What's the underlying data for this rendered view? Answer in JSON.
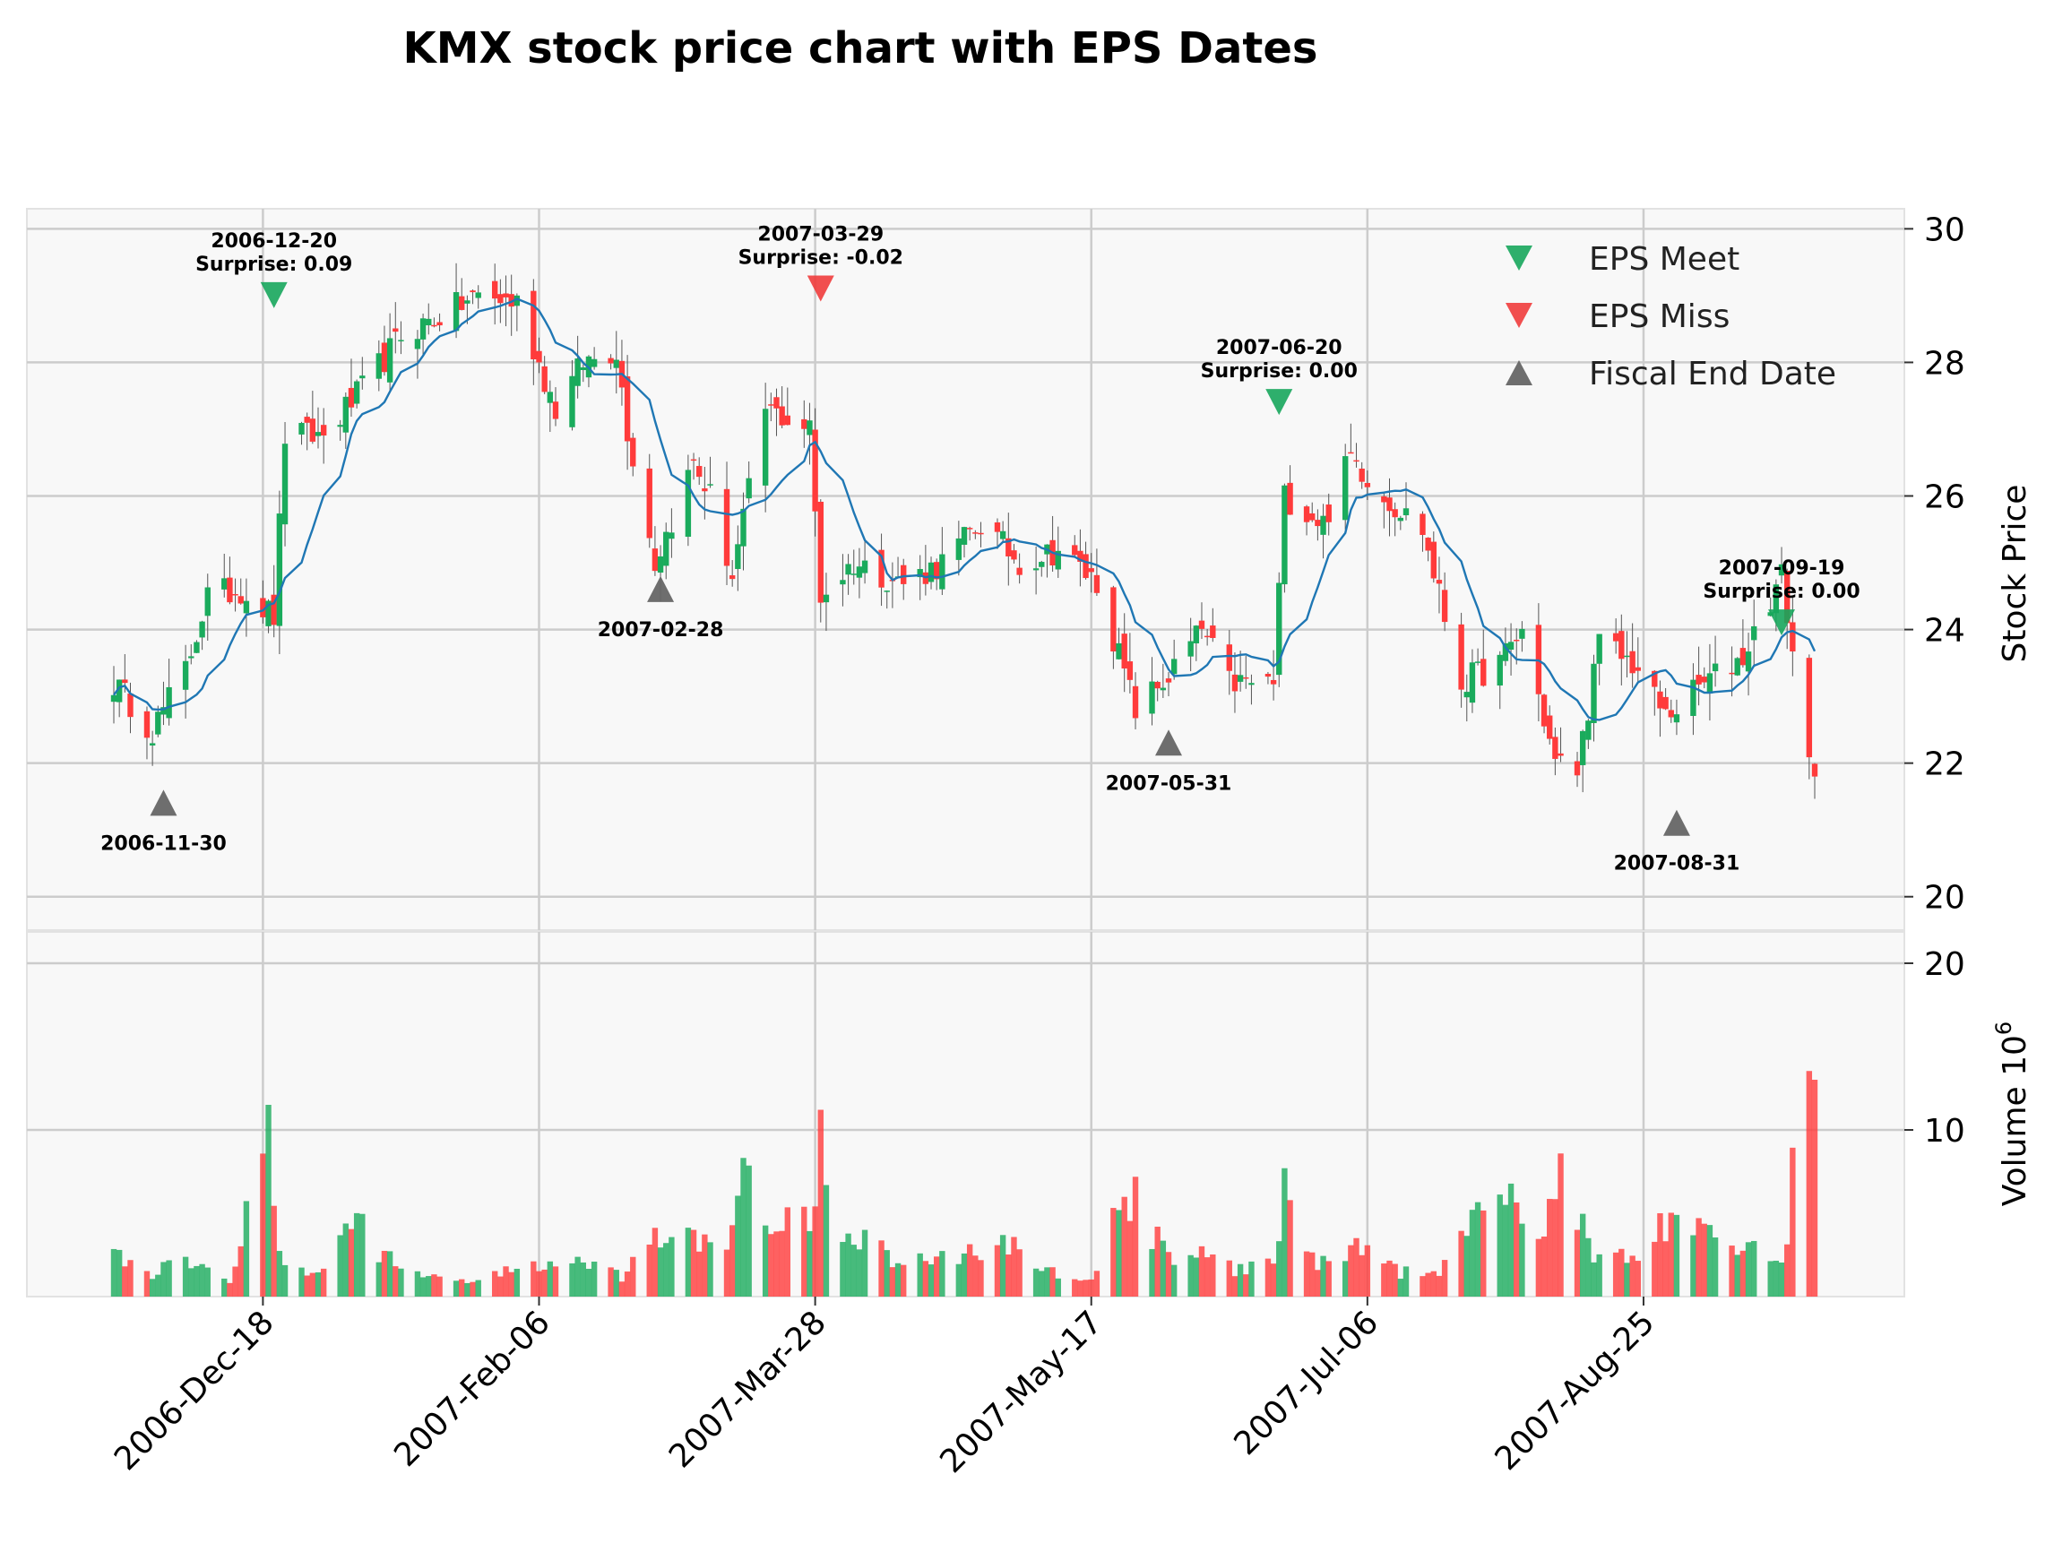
{
  "chart_data": {
    "type": "candlestick",
    "title": "KMX stock price chart with EPS Dates",
    "price_axis": {
      "label": "Stock Price",
      "ylim": [
        19.5,
        30.3
      ],
      "ticks": [
        20,
        22,
        24,
        26,
        28,
        30
      ]
    },
    "volume_axis": {
      "label": "Volume  10",
      "exponent": "6",
      "ylim": [
        0,
        20
      ],
      "ticks": [
        10,
        20
      ]
    },
    "x_axis": {
      "start_date": "2006-11-21",
      "end_date": "2007-09-25",
      "tick_labels": [
        "2006-Dec-18",
        "2007-Feb-06",
        "2007-Mar-28",
        "2007-May-17",
        "2007-Jul-06",
        "2007-Aug-25"
      ],
      "tick_dates": [
        "2006-12-18",
        "2007-02-06",
        "2007-03-28",
        "2007-05-17",
        "2007-07-06",
        "2007-08-25"
      ]
    },
    "grid": true,
    "legend": {
      "position": "top-right",
      "entries": [
        "EPS Meet",
        "EPS Miss",
        "Fiscal End Date"
      ]
    },
    "colors": {
      "up": "#1aab5c",
      "down": "#ff3b3b",
      "ma": "#1f77b4",
      "meet": "#17a65c",
      "miss": "#f03c3c",
      "fiscal": "#666666",
      "panel_bg": "#f8f8f8",
      "grid": "#cccccc"
    },
    "price_anchors": [
      [
        "2006-11-21",
        23.2
      ],
      [
        "2006-11-28",
        22.5
      ],
      [
        "2006-12-04",
        23.4
      ],
      [
        "2006-12-08",
        24.5
      ],
      [
        "2006-12-14",
        24.6
      ],
      [
        "2006-12-20",
        24.2
      ],
      [
        "2006-12-22",
        26.9
      ],
      [
        "2006-12-29",
        26.9
      ],
      [
        "2007-01-05",
        27.6
      ],
      [
        "2007-01-12",
        28.4
      ],
      [
        "2007-01-19",
        28.7
      ],
      [
        "2007-01-26",
        29.0
      ],
      [
        "2007-02-02",
        28.9
      ],
      [
        "2007-02-09",
        27.3
      ],
      [
        "2007-02-14",
        28.0
      ],
      [
        "2007-02-20",
        28.2
      ],
      [
        "2007-02-22",
        27.0
      ],
      [
        "2007-02-27",
        25.0
      ],
      [
        "2007-03-06",
        26.5
      ],
      [
        "2007-03-09",
        26.0
      ],
      [
        "2007-03-13",
        24.8
      ],
      [
        "2007-03-19",
        27.3
      ],
      [
        "2007-03-27",
        27.0
      ],
      [
        "2007-03-29",
        24.5
      ],
      [
        "2007-04-04",
        25.0
      ],
      [
        "2007-04-13",
        24.7
      ],
      [
        "2007-04-20",
        25.0
      ],
      [
        "2007-04-27",
        25.6
      ],
      [
        "2007-05-04",
        25.0
      ],
      [
        "2007-05-11",
        25.2
      ],
      [
        "2007-05-18",
        24.7
      ],
      [
        "2007-05-25",
        22.8
      ],
      [
        "2007-05-31",
        23.3
      ],
      [
        "2007-06-06",
        24.0
      ],
      [
        "2007-06-11",
        23.2
      ],
      [
        "2007-06-19",
        23.2
      ],
      [
        "2007-06-21",
        26.0
      ],
      [
        "2007-06-28",
        25.6
      ],
      [
        "2007-07-03",
        26.6
      ],
      [
        "2007-07-09",
        26.0
      ],
      [
        "2007-07-16",
        25.5
      ],
      [
        "2007-07-23",
        23.2
      ],
      [
        "2007-07-30",
        23.5
      ],
      [
        "2007-08-03",
        24.0
      ],
      [
        "2007-08-09",
        22.0
      ],
      [
        "2007-08-13",
        21.9
      ],
      [
        "2007-08-17",
        23.8
      ],
      [
        "2007-08-23",
        23.5
      ],
      [
        "2007-08-29",
        22.7
      ],
      [
        "2007-09-05",
        23.2
      ],
      [
        "2007-09-12",
        23.6
      ],
      [
        "2007-09-19",
        24.8
      ],
      [
        "2007-09-24",
        22.0
      ]
    ],
    "volume_anchors": [
      [
        "2006-11-21",
        2.5
      ],
      [
        "2006-11-28",
        1.5
      ],
      [
        "2006-12-05",
        2.5
      ],
      [
        "2006-12-12",
        1.2
      ],
      [
        "2006-12-19",
        10.8
      ],
      [
        "2006-12-21",
        2.2
      ],
      [
        "2006-12-29",
        1.5
      ],
      [
        "2007-01-04",
        5.5
      ],
      [
        "2007-01-08",
        3.0
      ],
      [
        "2007-01-15",
        1.3
      ],
      [
        "2007-01-25",
        1.0
      ],
      [
        "2007-02-02",
        1.8
      ],
      [
        "2007-02-12",
        2.2
      ],
      [
        "2007-02-21",
        1.2
      ],
      [
        "2007-02-28",
        3.8
      ],
      [
        "2007-03-06",
        3.5
      ],
      [
        "2007-03-13",
        3.6
      ],
      [
        "2007-03-14",
        7.3
      ],
      [
        "2007-03-20",
        5.0
      ],
      [
        "2007-03-28",
        4.5
      ],
      [
        "2007-03-29",
        10.0
      ],
      [
        "2007-03-30",
        5.6
      ],
      [
        "2007-04-05",
        3.5
      ],
      [
        "2007-04-13",
        2.0
      ],
      [
        "2007-04-25",
        2.8
      ],
      [
        "2007-05-03",
        3.3
      ],
      [
        "2007-05-10",
        1.5
      ],
      [
        "2007-05-18",
        1.3
      ],
      [
        "2007-05-22",
        5.7
      ],
      [
        "2007-05-25",
        6.5
      ],
      [
        "2007-05-31",
        2.2
      ],
      [
        "2007-06-08",
        2.6
      ],
      [
        "2007-06-14",
        1.5
      ],
      [
        "2007-06-19",
        2.5
      ],
      [
        "2007-06-21",
        7.0
      ],
      [
        "2007-06-27",
        2.0
      ],
      [
        "2007-07-05",
        3.0
      ],
      [
        "2007-07-12",
        1.5
      ],
      [
        "2007-07-19",
        1.2
      ],
      [
        "2007-07-23",
        4.5
      ],
      [
        "2007-07-27",
        4.7
      ],
      [
        "2007-08-01",
        6.5
      ],
      [
        "2007-08-06",
        4.5
      ],
      [
        "2007-08-10",
        7.7
      ],
      [
        "2007-08-16",
        3.0
      ],
      [
        "2007-08-22",
        2.3
      ],
      [
        "2007-08-29",
        4.3
      ],
      [
        "2007-09-05",
        3.7
      ],
      [
        "2007-09-12",
        2.7
      ],
      [
        "2007-09-20",
        3.0
      ],
      [
        "2007-09-24",
        20.0
      ]
    ],
    "eps_markers": [
      {
        "type": "meet",
        "date": "2006-12-20",
        "price": 29.0,
        "label": "2006-12-20",
        "surprise": "Surprise: 0.09"
      },
      {
        "type": "miss",
        "date": "2007-03-29",
        "price": 29.1,
        "label": "2007-03-29",
        "surprise": "Surprise: -0.02"
      },
      {
        "type": "meet",
        "date": "2007-06-20",
        "price": 27.4,
        "label": "2007-06-20",
        "surprise": "Surprise: 0.00"
      },
      {
        "type": "meet",
        "date": "2007-09-19",
        "price": 24.1,
        "label": "2007-09-19",
        "surprise": "Surprise: 0.00"
      }
    ],
    "fiscal_markers": [
      {
        "date": "2006-11-30",
        "price": 21.4,
        "label": "2006-11-30"
      },
      {
        "date": "2007-02-28",
        "price": 24.6,
        "label": "2007-02-28"
      },
      {
        "date": "2007-05-31",
        "price": 22.3,
        "label": "2007-05-31"
      },
      {
        "date": "2007-08-31",
        "price": 21.1,
        "label": "2007-08-31"
      }
    ]
  }
}
